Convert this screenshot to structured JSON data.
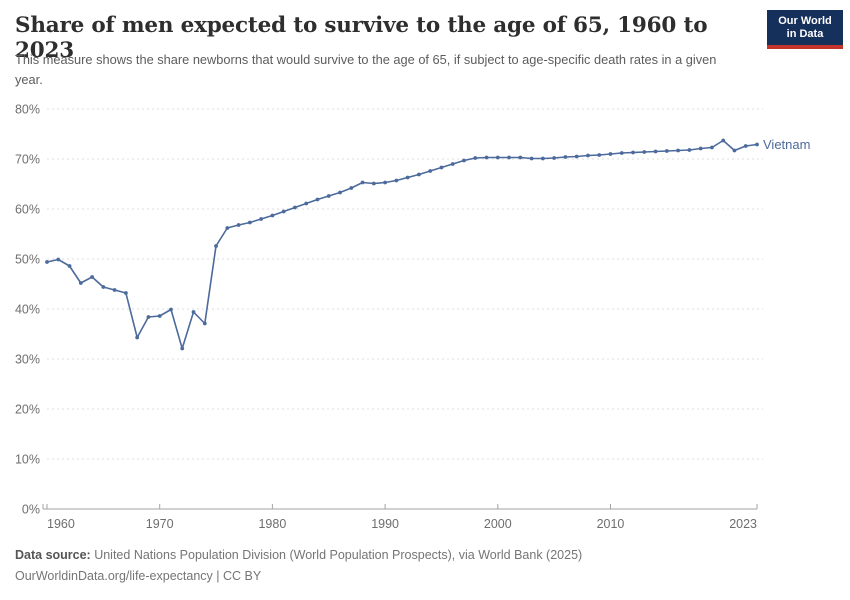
{
  "header": {
    "title": "Share of men expected to survive to the age of 65, 1960 to 2023",
    "subtitle": "This measure shows the share newborns that would survive to the age of 65, if subject to age-specific death rates in a given year."
  },
  "logo": {
    "line1": "Our World",
    "line2": "in Data"
  },
  "colors": {
    "line": "#4c6a9c",
    "grid": "#dedede",
    "axis": "#a3a3a3",
    "tick_text": "#6e6e6e",
    "series_label": "#4c6a9c",
    "logo_bg": "#16305c",
    "logo_accent": "#c3342b"
  },
  "chart_data": {
    "type": "line",
    "title": "Share of men expected to survive to the age of 65, 1960 to 2023",
    "xlabel": "",
    "ylabel": "",
    "ylim": [
      0,
      80
    ],
    "yticks": [
      0,
      10,
      20,
      30,
      40,
      50,
      60,
      70,
      80
    ],
    "ytick_suffix": "%",
    "xticks": [
      1960,
      1970,
      1980,
      1990,
      2000,
      2010,
      2023
    ],
    "grid": true,
    "legend": "end-of-line label",
    "x": [
      1960,
      1961,
      1962,
      1963,
      1964,
      1965,
      1966,
      1967,
      1968,
      1969,
      1970,
      1971,
      1972,
      1973,
      1974,
      1975,
      1976,
      1977,
      1978,
      1979,
      1980,
      1981,
      1982,
      1983,
      1984,
      1985,
      1986,
      1987,
      1988,
      1989,
      1990,
      1991,
      1992,
      1993,
      1994,
      1995,
      1996,
      1997,
      1998,
      1999,
      2000,
      2001,
      2002,
      2003,
      2004,
      2005,
      2006,
      2007,
      2008,
      2009,
      2010,
      2011,
      2012,
      2013,
      2014,
      2015,
      2016,
      2017,
      2018,
      2019,
      2020,
      2021,
      2022,
      2023
    ],
    "series": [
      {
        "name": "Vietnam",
        "values": [
          49.4,
          49.9,
          48.6,
          45.2,
          46.4,
          44.4,
          43.8,
          43.2,
          34.3,
          38.4,
          38.6,
          39.9,
          32.1,
          39.4,
          37.1,
          52.6,
          56.2,
          56.8,
          57.3,
          58.0,
          58.7,
          59.5,
          60.3,
          61.1,
          61.9,
          62.6,
          63.3,
          64.2,
          65.3,
          65.1,
          65.3,
          65.7,
          66.3,
          66.9,
          67.6,
          68.3,
          69.0,
          69.7,
          70.2,
          70.3,
          70.3,
          70.3,
          70.3,
          70.1,
          70.1,
          70.2,
          70.4,
          70.5,
          70.7,
          70.8,
          71.0,
          71.2,
          71.3,
          71.4,
          71.5,
          71.6,
          71.7,
          71.8,
          72.1,
          72.3,
          73.7,
          71.7,
          72.6,
          72.9
        ]
      }
    ]
  },
  "footer": {
    "source_label": "Data source:",
    "source_text": " United Nations Population Division (World Population Prospects), via World Bank (2025)",
    "link_text": "OurWorldinData.org/life-expectancy | CC BY"
  }
}
